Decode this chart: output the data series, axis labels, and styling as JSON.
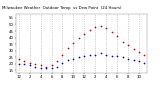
{
  "background_color": "#ffffff",
  "grid_color": "#aaaaaa",
  "temp_color": "#cc0000",
  "dew_color": "#0000cc",
  "legend_temp_color": "#ff0000",
  "legend_dew_color": "#0000ff",
  "ylim": [
    13,
    58
  ],
  "yticks": [
    15,
    20,
    25,
    30,
    35,
    40,
    45,
    50,
    55
  ],
  "ytick_labels": [
    "15",
    "20",
    "25",
    "30",
    "35",
    "40",
    "45",
    "50",
    "55"
  ],
  "num_hours": 24,
  "temp_data": [
    24,
    22,
    21,
    20,
    19,
    18,
    19,
    22,
    27,
    32,
    36,
    40,
    43,
    46,
    48,
    49,
    47,
    44,
    41,
    37,
    34,
    31,
    29,
    27
  ],
  "dew_data": [
    20,
    20,
    19,
    18,
    17,
    17,
    17,
    18,
    21,
    23,
    24,
    25,
    26,
    27,
    27,
    28,
    27,
    26,
    26,
    25,
    24,
    23,
    22,
    21
  ],
  "x_tick_positions": [
    0,
    2,
    4,
    6,
    8,
    10,
    12,
    14,
    16,
    18,
    20,
    22
  ],
  "x_tick_labels": [
    "12",
    "2",
    "4",
    "6",
    "8",
    "10",
    "12",
    "2",
    "4",
    "6",
    "8",
    "10"
  ],
  "vgrid_positions": [
    0,
    2,
    4,
    6,
    8,
    10,
    12,
    14,
    16,
    18,
    20,
    22
  ],
  "marker_size": 1.5,
  "ytick_fontsize": 2.8,
  "xtick_fontsize": 2.8,
  "title_text": "Milwaukee Weather  Outdoor Temp  vs Dew Point  (24 Hours)",
  "title_fontsize": 2.8
}
